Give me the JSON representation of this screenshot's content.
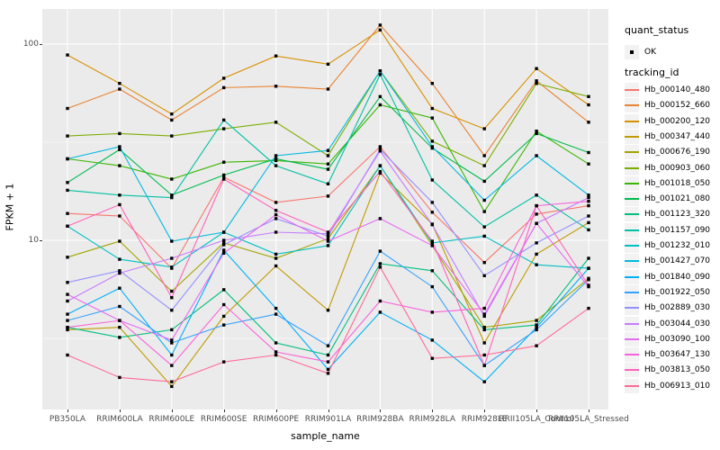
{
  "figure": {
    "panel_background": "#EBEBEB",
    "grid_color": "#FFFFFF",
    "tick_label_color": "#4D4D4D",
    "marker_color": "#000000"
  },
  "chart_data": {
    "type": "line",
    "title": "",
    "xlabel": "sample_name",
    "ylabel": "FPKM + 1",
    "yscale": "log10",
    "ylim": [
      1.35,
      155
    ],
    "yticks_major": [
      10,
      100
    ],
    "yticks_minor": [
      3.162,
      31.62
    ],
    "grid": true,
    "legend_position": "right",
    "point_marker": "black-square",
    "categories": [
      "PB350LA",
      "RRIM600LA",
      "RRIM600LE",
      "RRIM600SE",
      "RRIM600PE",
      "RRIM901LA",
      "RRIM928BA",
      "RRIM928LA",
      "RRIM928LE",
      "RRII105LA_Control",
      "RRII105LA_Stressed"
    ],
    "legend": {
      "quant_status": {
        "title": "quant_status",
        "items": [
          {
            "label": "OK",
            "marker": "black-point"
          }
        ]
      },
      "tracking_id_title": "tracking_id"
    },
    "series": [
      {
        "tracking_id": "Hb_000140_480",
        "color": "#F8766D",
        "values": [
          13.7,
          13.3,
          7.2,
          21,
          15.6,
          16.8,
          30,
          13.9,
          7.7,
          13.6,
          15
        ]
      },
      {
        "tracking_id": "Hb_000152_660",
        "color": "#EA8331",
        "values": [
          47,
          59,
          41,
          60,
          61,
          59,
          125,
          63,
          27,
          65,
          40
        ]
      },
      {
        "tracking_id": "Hb_000200_120",
        "color": "#D89000",
        "values": [
          88,
          63,
          44,
          67,
          87,
          79,
          118,
          47,
          37,
          75,
          49
        ]
      },
      {
        "tracking_id": "Hb_000347_440",
        "color": "#C09B00",
        "values": [
          3.5,
          3.6,
          1.8,
          4.1,
          7.4,
          4.4,
          22,
          12.1,
          3.0,
          8.5,
          12.3
        ]
      },
      {
        "tracking_id": "Hb_000676_190",
        "color": "#A3A500",
        "values": [
          8.2,
          9.9,
          5.5,
          9.7,
          8.1,
          10.2,
          24,
          9.4,
          3.6,
          3.9,
          6.4
        ]
      },
      {
        "tracking_id": "Hb_000903_060",
        "color": "#7CAE00",
        "values": [
          34,
          35,
          34,
          37,
          40,
          27,
          73,
          32,
          24,
          63,
          54
        ]
      },
      {
        "tracking_id": "Hb_001018_050",
        "color": "#39B600",
        "values": [
          26,
          24,
          20.5,
          25,
          25.5,
          24.5,
          49,
          42,
          14,
          36,
          24.5
        ]
      },
      {
        "tracking_id": "Hb_001021_080",
        "color": "#00BB4E",
        "values": [
          19.7,
          29,
          17,
          21.5,
          26,
          23,
          54,
          29.5,
          20,
          35,
          28
        ]
      },
      {
        "tracking_id": "Hb_001123_320",
        "color": "#00BF7D",
        "values": [
          3.6,
          3.2,
          3.5,
          5.6,
          3.0,
          2.6,
          7.6,
          7.0,
          3.5,
          3.7,
          8.1
        ]
      },
      {
        "tracking_id": "Hb_001157_090",
        "color": "#00C1A3",
        "values": [
          18,
          17,
          16.5,
          41,
          24,
          19.4,
          70,
          20.3,
          11.7,
          17,
          11.3
        ]
      },
      {
        "tracking_id": "Hb_001232_010",
        "color": "#00BFC4",
        "values": [
          11.8,
          8.0,
          7.3,
          11,
          8.5,
          9.4,
          24,
          9.7,
          10.5,
          7.5,
          7.2
        ]
      },
      {
        "tracking_id": "Hb_001427_070",
        "color": "#00BAE0",
        "values": [
          26,
          30,
          9.9,
          11,
          27,
          28.7,
          73,
          30,
          16,
          27,
          17
        ]
      },
      {
        "tracking_id": "Hb_001840_090",
        "color": "#00B0F6",
        "values": [
          4.2,
          5.7,
          2.6,
          8.9,
          4.5,
          2.2,
          4.3,
          3.1,
          1.9,
          3.6,
          7.2
        ]
      },
      {
        "tracking_id": "Hb_001922_050",
        "color": "#35A2FF",
        "values": [
          3.9,
          4.6,
          3.0,
          3.7,
          4.2,
          2.9,
          8.8,
          5.8,
          2.3,
          3.5,
          6.3
        ]
      },
      {
        "tracking_id": "Hb_002889_030",
        "color": "#9590FF",
        "values": [
          6.1,
          7.0,
          4.4,
          9.5,
          12.9,
          10.5,
          29,
          15.6,
          6.6,
          9.7,
          13.3
        ]
      },
      {
        "tracking_id": "Hb_003044_030",
        "color": "#C77CFF",
        "values": [
          4.9,
          6.8,
          8.1,
          10,
          11,
          10.8,
          28.5,
          12,
          4.1,
          12.2,
          16.5
        ]
      },
      {
        "tracking_id": "Hb_003090_100",
        "color": "#E76BF3",
        "values": [
          5.3,
          3.9,
          3.1,
          8.6,
          13.5,
          9.9,
          12.9,
          9.4,
          4.2,
          12.2,
          5.8
        ]
      },
      {
        "tracking_id": "Hb_003647_130",
        "color": "#FA62DB",
        "values": [
          3.6,
          3.9,
          2.3,
          4.7,
          2.7,
          2.4,
          4.9,
          4.3,
          4.5,
          15,
          15.8
        ]
      },
      {
        "tracking_id": "Hb_003813_050",
        "color": "#FF62BC",
        "values": [
          11.8,
          15.2,
          5.1,
          20.5,
          14.2,
          11,
          22.4,
          9.9,
          2.3,
          15,
          5.9
        ]
      },
      {
        "tracking_id": "Hb_006913_010",
        "color": "#FF6A98",
        "values": [
          2.6,
          2.0,
          1.9,
          2.4,
          2.6,
          2.1,
          7.3,
          2.5,
          2.6,
          2.9,
          4.5
        ]
      }
    ]
  }
}
